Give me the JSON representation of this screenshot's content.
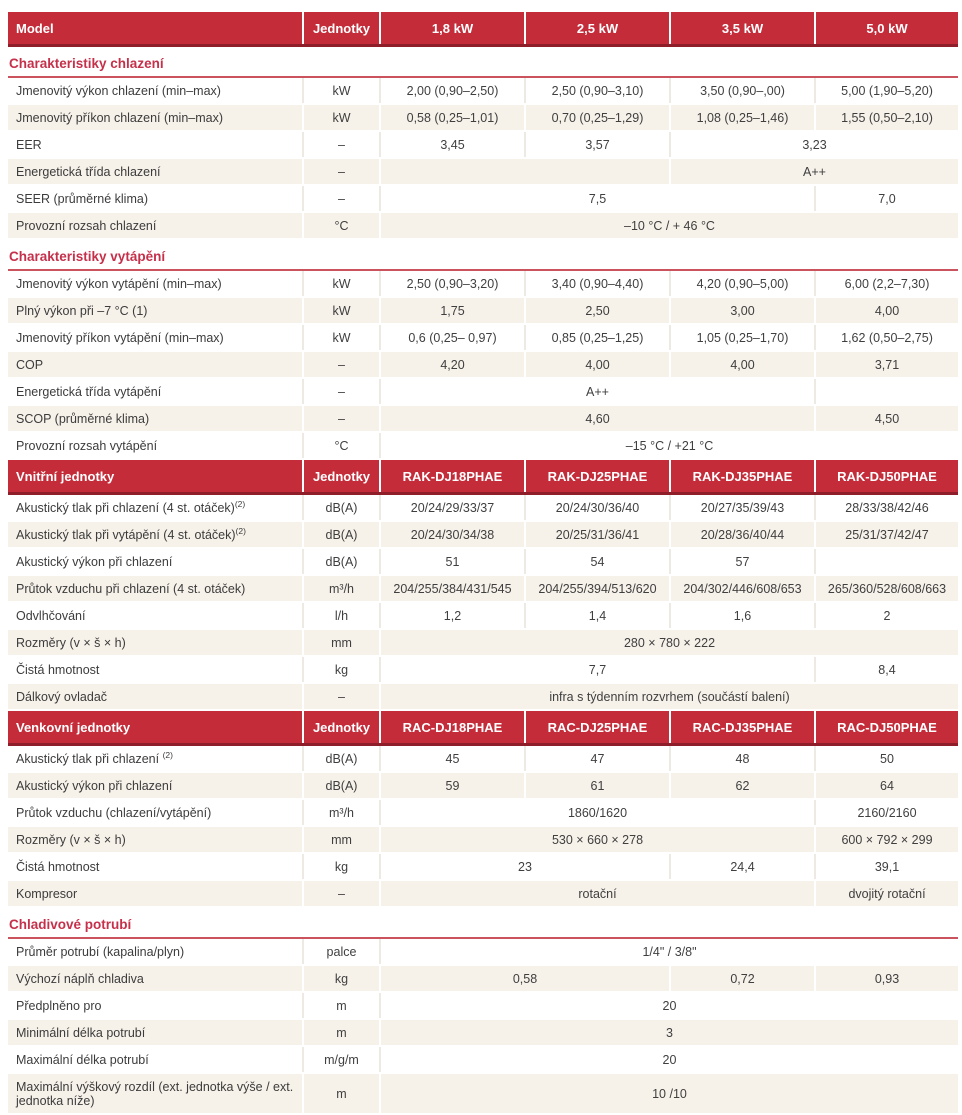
{
  "table": {
    "blocks": [
      {
        "type": "header",
        "cells": [
          "Model",
          "Jednotky",
          "1,8 kW",
          "2,5 kW",
          "3,5 kW",
          "5,0 kW"
        ]
      },
      {
        "type": "section",
        "title": "Charakteristiky chlazení"
      },
      {
        "type": "row",
        "label": "Jmenovitý výkon chlazení (min–max)",
        "unit": "kW",
        "values": [
          {
            "text": "2,00 (0,90–2,50)",
            "span": 1
          },
          {
            "text": "2,50 (0,90–3,10)",
            "span": 1
          },
          {
            "text": "3,50 (0,90–,00)",
            "span": 1
          },
          {
            "text": "5,00 (1,90–5,20)",
            "span": 1
          }
        ]
      },
      {
        "type": "row",
        "label": "Jmenovitý příkon chlazení (min–max)",
        "unit": "kW",
        "values": [
          {
            "text": "0,58 (0,25–1,01)",
            "span": 1
          },
          {
            "text": "0,70 (0,25–1,29)",
            "span": 1
          },
          {
            "text": "1,08 (0,25–1,46)",
            "span": 1
          },
          {
            "text": "1,55 (0,50–2,10)",
            "span": 1
          }
        ]
      },
      {
        "type": "row",
        "label": "EER",
        "unit": "–",
        "values": [
          {
            "text": "3,45",
            "span": 1
          },
          {
            "text": "3,57",
            "span": 1
          },
          {
            "text": "3,23",
            "span": 2
          }
        ]
      },
      {
        "type": "row",
        "label": "Energetická třída chlazení",
        "unit": "–",
        "values": [
          {
            "text": "",
            "span": 2
          },
          {
            "text": "A++",
            "span": 2
          }
        ]
      },
      {
        "type": "row",
        "label": "SEER (průměrné klima)",
        "unit": "–",
        "values": [
          {
            "text": "7,5",
            "span": 3
          },
          {
            "text": "7,0",
            "span": 1
          }
        ]
      },
      {
        "type": "row",
        "label": "Provozní rozsah chlazení",
        "unit": "°C",
        "values": [
          {
            "text": "–10 °C / + 46 °C",
            "span": 4
          }
        ]
      },
      {
        "type": "section",
        "title": "Charakteristiky vytápění"
      },
      {
        "type": "row",
        "label": "Jmenovitý výkon vytápění (min–max)",
        "unit": "kW",
        "values": [
          {
            "text": "2,50 (0,90–3,20)",
            "span": 1
          },
          {
            "text": "3,40 (0,90–4,40)",
            "span": 1
          },
          {
            "text": "4,20 (0,90–5,00)",
            "span": 1
          },
          {
            "text": "6,00 (2,2–7,30)",
            "span": 1
          }
        ]
      },
      {
        "type": "row",
        "label": "Plný výkon při –7 °C (1)",
        "unit": "kW",
        "values": [
          {
            "text": "1,75",
            "span": 1
          },
          {
            "text": "2,50",
            "span": 1
          },
          {
            "text": "3,00",
            "span": 1
          },
          {
            "text": "4,00",
            "span": 1
          }
        ]
      },
      {
        "type": "row",
        "label": "Jmenovitý příkon vytápění (min–max)",
        "unit": "kW",
        "values": [
          {
            "text": "0,6 (0,25– 0,97)",
            "span": 1
          },
          {
            "text": "0,85 (0,25–1,25)",
            "span": 1
          },
          {
            "text": "1,05 (0,25–1,70)",
            "span": 1
          },
          {
            "text": "1,62 (0,50–2,75)",
            "span": 1
          }
        ]
      },
      {
        "type": "row",
        "label": "COP",
        "unit": "–",
        "values": [
          {
            "text": "4,20",
            "span": 1
          },
          {
            "text": "4,00",
            "span": 1
          },
          {
            "text": "4,00",
            "span": 1
          },
          {
            "text": "3,71",
            "span": 1
          }
        ]
      },
      {
        "type": "row",
        "label": "Energetická třída vytápění",
        "unit": "–",
        "values": [
          {
            "text": "A++",
            "span": 3
          },
          {
            "text": "",
            "span": 1
          }
        ]
      },
      {
        "type": "row",
        "label": "SCOP (průměrné klima)",
        "unit": "–",
        "values": [
          {
            "text": "4,60",
            "span": 3
          },
          {
            "text": "4,50",
            "span": 1
          }
        ]
      },
      {
        "type": "row",
        "label": "Provozní rozsah vytápění",
        "unit": "°C",
        "values": [
          {
            "text": "–15 °C / +21 °C",
            "span": 4
          }
        ]
      },
      {
        "type": "header",
        "cells": [
          "Vnitřní jednotky",
          "Jednotky",
          "RAK-DJ18PHAE",
          "RAK-DJ25PHAE",
          "RAK-DJ35PHAE",
          "RAK-DJ50PHAE"
        ]
      },
      {
        "type": "row",
        "label": "Akustický tlak při chlazení (4 st. otáček)",
        "label_sup": "(2)",
        "unit": "dB(A)",
        "values": [
          {
            "text": "20/24/29/33/37",
            "span": 1
          },
          {
            "text": "20/24/30/36/40",
            "span": 1
          },
          {
            "text": "20/27/35/39/43",
            "span": 1
          },
          {
            "text": "28/33/38/42/46",
            "span": 1
          }
        ]
      },
      {
        "type": "row",
        "label": "Akustický tlak při vytápění (4 st. otáček)",
        "label_sup": "(2)",
        "unit": "dB(A)",
        "values": [
          {
            "text": "20/24/30/34/38",
            "span": 1
          },
          {
            "text": "20/25/31/36/41",
            "span": 1
          },
          {
            "text": "20/28/36/40/44",
            "span": 1
          },
          {
            "text": "25/31/37/42/47",
            "span": 1
          }
        ]
      },
      {
        "type": "row",
        "label": "Akustický výkon při chlazení",
        "unit": "dB(A)",
        "values": [
          {
            "text": "51",
            "span": 1
          },
          {
            "text": "54",
            "span": 1
          },
          {
            "text": "57",
            "span": 1
          },
          {
            "text": "",
            "span": 1
          }
        ]
      },
      {
        "type": "row",
        "label": "Průtok vzduchu při chlazení (4 st. otáček)",
        "unit": "m³/h",
        "values": [
          {
            "text": "204/255/384/431/545",
            "span": 1
          },
          {
            "text": "204/255/394/513/620",
            "span": 1
          },
          {
            "text": "204/302/446/608/653",
            "span": 1
          },
          {
            "text": "265/360/528/608/663",
            "span": 1
          }
        ]
      },
      {
        "type": "row",
        "label": "Odvlhčování",
        "unit": "l/h",
        "values": [
          {
            "text": "1,2",
            "span": 1
          },
          {
            "text": "1,4",
            "span": 1
          },
          {
            "text": "1,6",
            "span": 1
          },
          {
            "text": "2",
            "span": 1
          }
        ]
      },
      {
        "type": "row",
        "label": "Rozměry (v × š × h)",
        "unit": "mm",
        "values": [
          {
            "text": "280 × 780 × 222",
            "span": 4
          }
        ]
      },
      {
        "type": "row",
        "label": "Čistá hmotnost",
        "unit": "kg",
        "values": [
          {
            "text": "7,7",
            "span": 3
          },
          {
            "text": "8,4",
            "span": 1
          }
        ]
      },
      {
        "type": "row",
        "label": "Dálkový ovladač",
        "unit": "–",
        "values": [
          {
            "text": "infra s týdenním rozvrhem (součástí balení)",
            "span": 4,
            "align": "right"
          }
        ]
      },
      {
        "type": "header",
        "cells": [
          "Venkovní jednotky",
          "Jednotky",
          "RAC-DJ18PHAE",
          "RAC-DJ25PHAE",
          "RAC-DJ35PHAE",
          "RAC-DJ50PHAE"
        ]
      },
      {
        "type": "row",
        "label": "Akustický tlak při chlazení ",
        "label_sup": "(2)",
        "unit": "dB(A)",
        "values": [
          {
            "text": "45",
            "span": 1
          },
          {
            "text": "47",
            "span": 1
          },
          {
            "text": "48",
            "span": 1
          },
          {
            "text": "50",
            "span": 1
          }
        ]
      },
      {
        "type": "row",
        "label": "Akustický výkon při chlazení",
        "unit": "dB(A)",
        "values": [
          {
            "text": "59",
            "span": 1
          },
          {
            "text": "61",
            "span": 1
          },
          {
            "text": "62",
            "span": 1
          },
          {
            "text": "64",
            "span": 1
          }
        ]
      },
      {
        "type": "row",
        "label": "Průtok vzduchu (chlazení/vytápění)",
        "unit": "m³/h",
        "values": [
          {
            "text": "1860/1620",
            "span": 3
          },
          {
            "text": "2160/2160",
            "span": 1
          }
        ]
      },
      {
        "type": "row",
        "label": "Rozměry (v × š × h)",
        "unit": "mm",
        "values": [
          {
            "text": "530 × 660 × 278",
            "span": 3
          },
          {
            "text": "600 × 792 × 299",
            "span": 1
          }
        ]
      },
      {
        "type": "row",
        "label": "Čistá hmotnost",
        "unit": "kg",
        "values": [
          {
            "text": "23",
            "span": 2
          },
          {
            "text": "24,4",
            "span": 1
          },
          {
            "text": "39,1",
            "span": 1
          }
        ]
      },
      {
        "type": "row",
        "label": "Kompresor",
        "unit": "–",
        "values": [
          {
            "text": "rotační",
            "span": 3
          },
          {
            "text": "dvojitý rotační",
            "span": 1
          }
        ]
      },
      {
        "type": "section",
        "title": "Chladivové potrubí"
      },
      {
        "type": "row",
        "label": "Průměr potrubí (kapalina/plyn)",
        "unit": "palce",
        "values": [
          {
            "text": "1/4\" / 3/8\"",
            "span": 4
          }
        ]
      },
      {
        "type": "row",
        "label": "Výchozí náplň chladiva",
        "unit": "kg",
        "values": [
          {
            "text": "0,58",
            "span": 2
          },
          {
            "text": "0,72",
            "span": 1
          },
          {
            "text": "0,93",
            "span": 1
          }
        ]
      },
      {
        "type": "row",
        "label": "Předplněno pro",
        "unit": "m",
        "values": [
          {
            "text": "20",
            "span": 4
          }
        ]
      },
      {
        "type": "row",
        "label": "Minimální délka potrubí",
        "unit": "m",
        "values": [
          {
            "text": "3",
            "span": 4
          }
        ]
      },
      {
        "type": "row",
        "label": "Maximální délka potrubí",
        "unit": "m/g/m",
        "values": [
          {
            "text": "20",
            "span": 4
          }
        ]
      },
      {
        "type": "row",
        "label": "Maximální výškový rozdíl (ext. jednotka výše / ext. jednotka níže)",
        "unit": "m",
        "values": [
          {
            "text": "10 /10",
            "span": 4
          }
        ]
      }
    ]
  },
  "colors": {
    "header_bg": "#c42c3a",
    "header_border": "#8e1f2a",
    "section_title": "#c5304a",
    "section_underline": "#cb535e",
    "row_beige": "#f6f1e9",
    "text": "#3f3f3f"
  }
}
